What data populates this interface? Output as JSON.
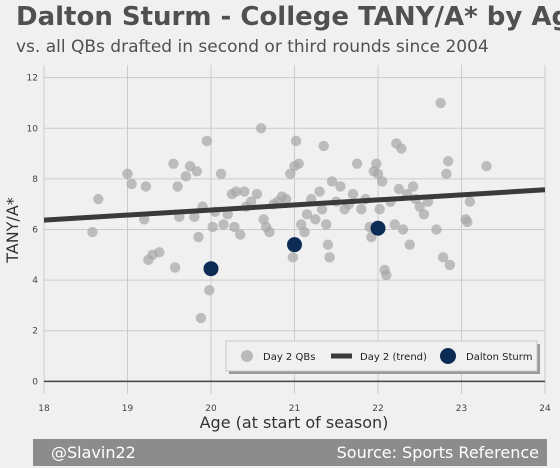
{
  "header": {
    "title": "Dalton Sturm - College TANY/A* by Age",
    "subtitle": "vs. all QBs drafted in second or third rounds since 2004"
  },
  "footer": {
    "credit": "@Slavin22",
    "source": "Source: Sports Reference"
  },
  "colors": {
    "background": "#f0f0f0",
    "grid": "#cbcbcb",
    "day2_points": "#a8a8a8",
    "trend_line": "#3a3a3a",
    "highlight": "#0c2c56",
    "footer_bg": "#8c8c8c"
  },
  "chart_data": {
    "type": "scatter",
    "xlabel": "Age (at start of season)",
    "ylabel": "TANY/A*",
    "xlim": [
      18,
      24
    ],
    "ylim": [
      -0.5,
      12.5
    ],
    "xticks": [
      18,
      19,
      20,
      21,
      22,
      23,
      24
    ],
    "yticks": [
      0,
      2,
      4,
      6,
      8,
      10,
      12
    ],
    "grid": true,
    "legend_position": "bottom-right",
    "series": [
      {
        "name": "Day 2 QBs",
        "kind": "scatter",
        "points": [
          [
            18.58,
            5.9
          ],
          [
            18.65,
            7.2
          ],
          [
            19.0,
            8.2
          ],
          [
            19.05,
            7.8
          ],
          [
            19.2,
            6.4
          ],
          [
            19.22,
            7.7
          ],
          [
            19.25,
            4.8
          ],
          [
            19.3,
            5.0
          ],
          [
            19.38,
            5.1
          ],
          [
            19.55,
            8.6
          ],
          [
            19.57,
            4.5
          ],
          [
            19.6,
            7.7
          ],
          [
            19.62,
            6.5
          ],
          [
            19.7,
            8.1
          ],
          [
            19.75,
            8.5
          ],
          [
            19.8,
            6.5
          ],
          [
            19.83,
            8.3
          ],
          [
            19.85,
            5.7
          ],
          [
            19.88,
            2.5
          ],
          [
            19.9,
            6.9
          ],
          [
            19.95,
            9.5
          ],
          [
            19.98,
            3.6
          ],
          [
            20.02,
            6.1
          ],
          [
            20.05,
            6.7
          ],
          [
            20.12,
            8.2
          ],
          [
            20.15,
            6.2
          ],
          [
            20.2,
            6.6
          ],
          [
            20.25,
            7.4
          ],
          [
            20.28,
            6.1
          ],
          [
            20.3,
            7.5
          ],
          [
            20.35,
            5.8
          ],
          [
            20.4,
            7.5
          ],
          [
            20.42,
            6.9
          ],
          [
            20.48,
            7.1
          ],
          [
            20.55,
            7.4
          ],
          [
            20.6,
            10.0
          ],
          [
            20.63,
            6.4
          ],
          [
            20.66,
            6.1
          ],
          [
            20.7,
            5.9
          ],
          [
            20.75,
            7.0
          ],
          [
            20.8,
            7.1
          ],
          [
            20.85,
            7.3
          ],
          [
            20.9,
            7.2
          ],
          [
            20.95,
            8.2
          ],
          [
            20.98,
            4.9
          ],
          [
            21.0,
            8.5
          ],
          [
            21.02,
            9.5
          ],
          [
            21.05,
            8.6
          ],
          [
            21.08,
            6.2
          ],
          [
            21.12,
            5.9
          ],
          [
            21.15,
            6.6
          ],
          [
            21.2,
            7.2
          ],
          [
            21.25,
            6.4
          ],
          [
            21.3,
            7.5
          ],
          [
            21.33,
            6.8
          ],
          [
            21.35,
            9.3
          ],
          [
            21.38,
            6.2
          ],
          [
            21.4,
            5.4
          ],
          [
            21.42,
            4.9
          ],
          [
            21.45,
            7.9
          ],
          [
            21.5,
            7.1
          ],
          [
            21.55,
            7.7
          ],
          [
            21.6,
            6.8
          ],
          [
            21.65,
            7.0
          ],
          [
            21.7,
            7.4
          ],
          [
            21.75,
            8.6
          ],
          [
            21.8,
            6.8
          ],
          [
            21.85,
            7.2
          ],
          [
            21.9,
            6.1
          ],
          [
            21.92,
            5.7
          ],
          [
            21.95,
            8.3
          ],
          [
            21.98,
            8.6
          ],
          [
            22.0,
            8.2
          ],
          [
            22.02,
            6.8
          ],
          [
            22.05,
            7.9
          ],
          [
            22.08,
            4.4
          ],
          [
            22.1,
            4.2
          ],
          [
            22.15,
            7.1
          ],
          [
            22.2,
            6.2
          ],
          [
            22.22,
            9.4
          ],
          [
            22.25,
            7.6
          ],
          [
            22.28,
            9.2
          ],
          [
            22.3,
            6.0
          ],
          [
            22.35,
            7.4
          ],
          [
            22.38,
            5.4
          ],
          [
            22.42,
            7.7
          ],
          [
            22.45,
            7.2
          ],
          [
            22.5,
            6.9
          ],
          [
            22.55,
            6.6
          ],
          [
            22.6,
            7.1
          ],
          [
            22.7,
            6.0
          ],
          [
            22.75,
            11.0
          ],
          [
            22.78,
            4.9
          ],
          [
            22.82,
            8.2
          ],
          [
            22.84,
            8.7
          ],
          [
            22.86,
            4.6
          ],
          [
            23.05,
            6.4
          ],
          [
            23.07,
            6.3
          ],
          [
            23.1,
            7.1
          ],
          [
            23.3,
            8.5
          ]
        ]
      },
      {
        "name": "Day 2 (trend)",
        "kind": "line",
        "points": [
          [
            18.0,
            6.37
          ],
          [
            24.0,
            7.57
          ]
        ]
      },
      {
        "name": "Dalton Sturm",
        "kind": "scatter",
        "points": [
          [
            20.0,
            4.45
          ],
          [
            21.0,
            5.4
          ],
          [
            22.0,
            6.05
          ]
        ]
      }
    ]
  }
}
